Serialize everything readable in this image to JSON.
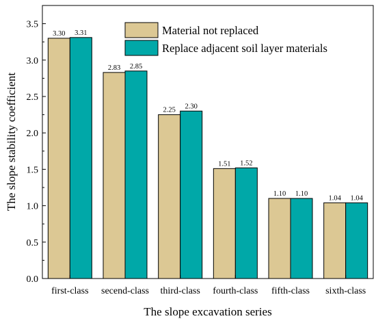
{
  "chart_data": {
    "type": "bar",
    "title": "",
    "xlabel": "The slope excavation series",
    "ylabel": "The slope stability coefficient",
    "ylim": [
      0,
      3.75
    ],
    "yticks": [
      "0.0",
      "0.5",
      "1.0",
      "1.5",
      "2.0",
      "2.5",
      "3.0",
      "3.5"
    ],
    "categories": [
      "first-class",
      "secend-class",
      "third-class",
      "fourth-class",
      "fifth-class",
      "sixth-class"
    ],
    "series": [
      {
        "name": "Material not replaced",
        "color": "#dcc894",
        "values": [
          3.3,
          2.83,
          2.25,
          1.51,
          1.1,
          1.04
        ],
        "labels": [
          "3.30",
          "2.83",
          "2.25",
          "1.51",
          "1.10",
          "1.04"
        ]
      },
      {
        "name": "Replace adjacent soil layer materials",
        "color": "#00a8a8",
        "values": [
          3.31,
          2.85,
          2.3,
          1.52,
          1.1,
          1.04
        ],
        "labels": [
          "3.31",
          "2.85",
          "2.30",
          "1.52",
          "1.10",
          "1.04"
        ]
      }
    ],
    "legend_position": "top-right",
    "grid": false
  }
}
